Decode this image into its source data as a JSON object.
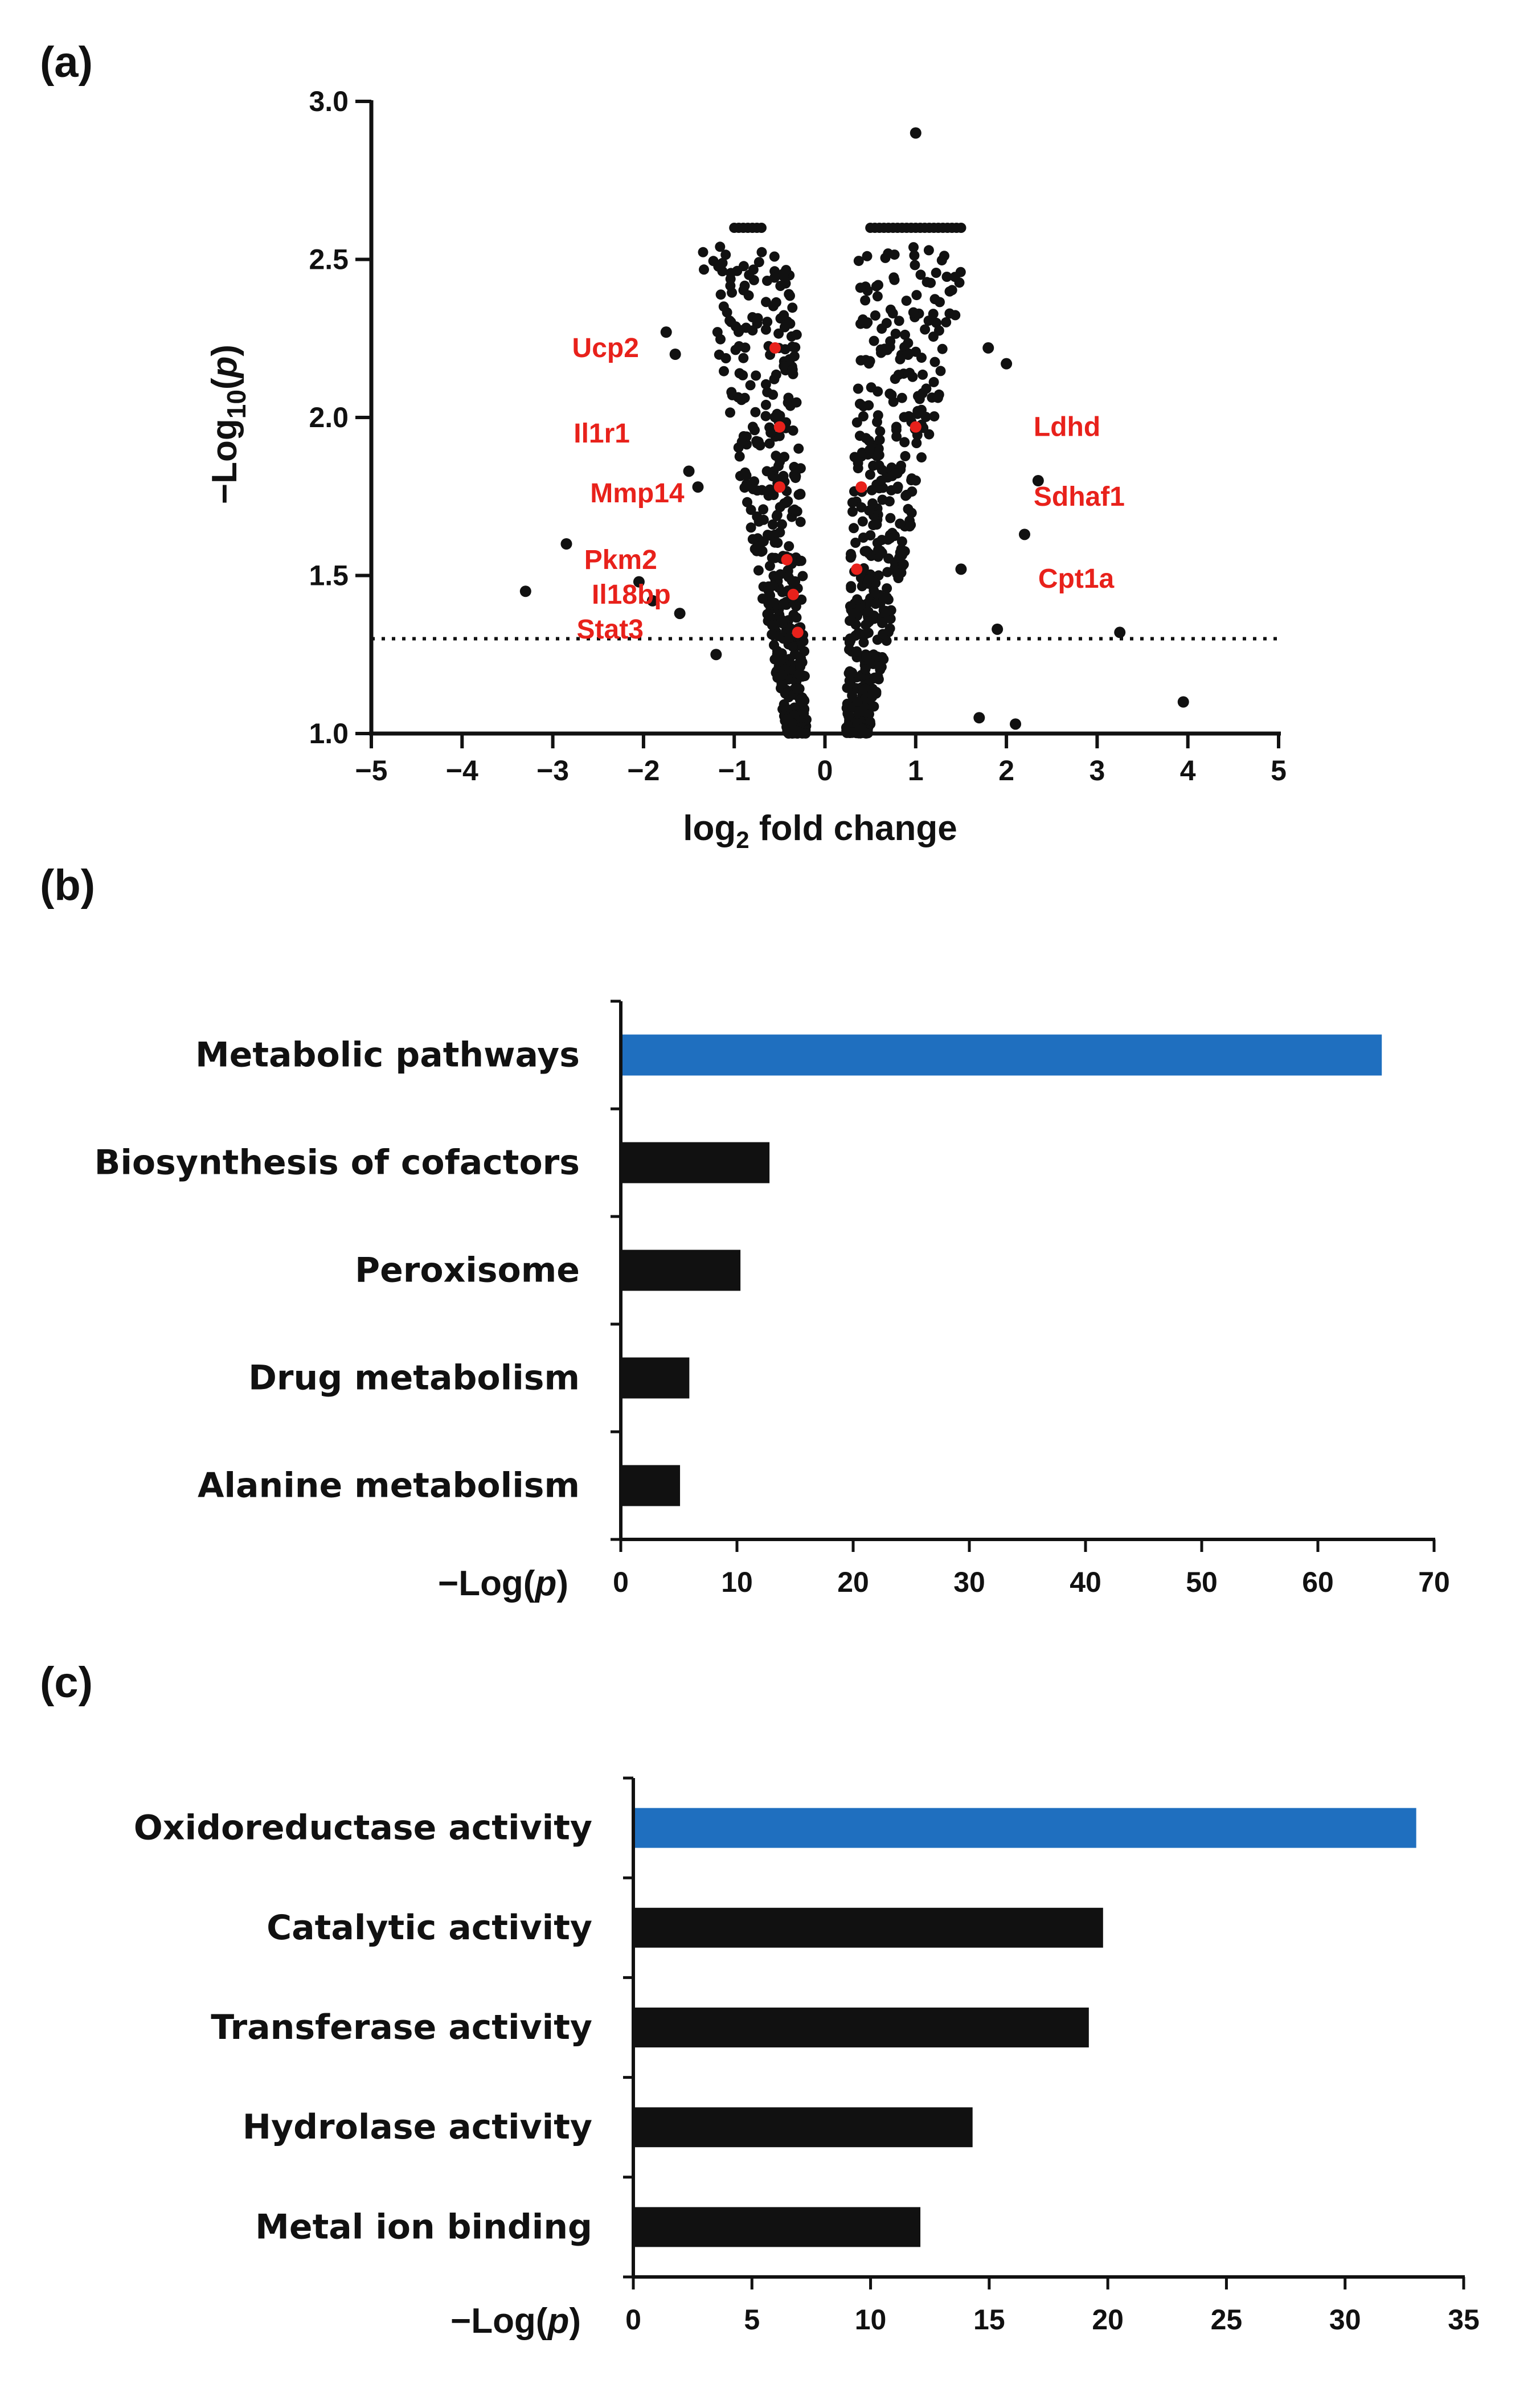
{
  "panels": {
    "a": {
      "label": "(a)"
    },
    "b": {
      "label": "(b)"
    },
    "c": {
      "label": "(c)"
    }
  },
  "colors": {
    "axis": "#111111",
    "point": "#111111",
    "highlight": "#e8211b",
    "bar_default": "#111111",
    "bar_highlight": "#1f6fbf"
  },
  "chart_data": [
    {
      "id": "volcano",
      "type": "scatter",
      "title": "",
      "xlabel": "log2 fold change",
      "ylabel": "−Log10(p)",
      "xlim": [
        -5,
        5
      ],
      "ylim": [
        1.0,
        3.0
      ],
      "xticks": [
        "−5",
        "−4",
        "−3",
        "−2",
        "−1",
        "0",
        "1",
        "2",
        "3",
        "4",
        "5"
      ],
      "yticks": [
        "1.0",
        "1.5",
        "2.0",
        "2.5",
        "3.0"
      ],
      "threshold_line": {
        "y": 1.3,
        "style": "dotted"
      },
      "annotated_genes": [
        {
          "name": "Ucp2",
          "x": -0.55,
          "y": 2.22
        },
        {
          "name": "Il1r1",
          "x": -0.5,
          "y": 1.97
        },
        {
          "name": "Mmp14",
          "x": -0.5,
          "y": 1.78
        },
        {
          "name": "Pkm2",
          "x": -0.42,
          "y": 1.55
        },
        {
          "name": "Il18bp",
          "x": -0.35,
          "y": 1.44
        },
        {
          "name": "Stat3",
          "x": -0.3,
          "y": 1.32
        },
        {
          "name": "Ldhd",
          "x": 1.0,
          "y": 1.97
        },
        {
          "name": "Sdhaf1",
          "x": 0.4,
          "y": 1.78
        },
        {
          "name": "Cpt1a",
          "x": 0.35,
          "y": 1.52
        }
      ],
      "outlier_points": [
        {
          "x": 1.0,
          "y": 2.9
        },
        {
          "x": -3.3,
          "y": 1.45
        },
        {
          "x": -2.85,
          "y": 1.6
        },
        {
          "x": -1.75,
          "y": 2.27
        },
        {
          "x": -1.5,
          "y": 1.83
        },
        {
          "x": -1.4,
          "y": 1.78
        },
        {
          "x": -1.65,
          "y": 2.2
        },
        {
          "x": 2.35,
          "y": 1.8
        },
        {
          "x": 2.2,
          "y": 1.63
        },
        {
          "x": 1.9,
          "y": 1.33
        },
        {
          "x": 3.25,
          "y": 1.32
        },
        {
          "x": 3.95,
          "y": 1.1
        },
        {
          "x": 2.0,
          "y": 2.17
        },
        {
          "x": 1.8,
          "y": 2.22
        },
        {
          "x": -1.6,
          "y": 1.38
        },
        {
          "x": -2.05,
          "y": 1.48
        },
        {
          "x": -1.9,
          "y": 1.42
        },
        {
          "x": 1.5,
          "y": 1.52
        },
        {
          "x": 1.7,
          "y": 1.05
        },
        {
          "x": -1.2,
          "y": 1.25
        },
        {
          "x": 2.1,
          "y": 1.03
        }
      ],
      "top_rows": [
        {
          "y": 2.6,
          "x_from": 0.5,
          "x_to": 1.5
        },
        {
          "y": 2.6,
          "x_from": -1.0,
          "x_to": -0.7
        }
      ]
    },
    {
      "id": "kegg",
      "type": "bar",
      "orientation": "horizontal",
      "xlabel": "−Log(p)",
      "xlim": [
        0,
        70
      ],
      "xticks": [
        "0",
        "10",
        "20",
        "30",
        "40",
        "50",
        "60",
        "70"
      ],
      "categories": [
        "Metabolic pathways",
        "Biosynthesis of cofactors",
        "Peroxisome",
        "Drug metabolism",
        "Alanine metabolism"
      ],
      "values": [
        65.5,
        12.8,
        10.3,
        5.9,
        5.1
      ],
      "highlight_index": 0
    },
    {
      "id": "go",
      "type": "bar",
      "orientation": "horizontal",
      "xlabel": "−Log(p)",
      "xlim": [
        0,
        35
      ],
      "xticks": [
        "0",
        "5",
        "10",
        "15",
        "20",
        "25",
        "30",
        "35"
      ],
      "categories": [
        "Oxidoreductase activity",
        "Catalytic activity",
        "Transferase activity",
        "Hydrolase activity",
        "Metal ion binding"
      ],
      "values": [
        33.0,
        19.8,
        19.2,
        14.3,
        12.1
      ],
      "highlight_index": 0
    }
  ]
}
